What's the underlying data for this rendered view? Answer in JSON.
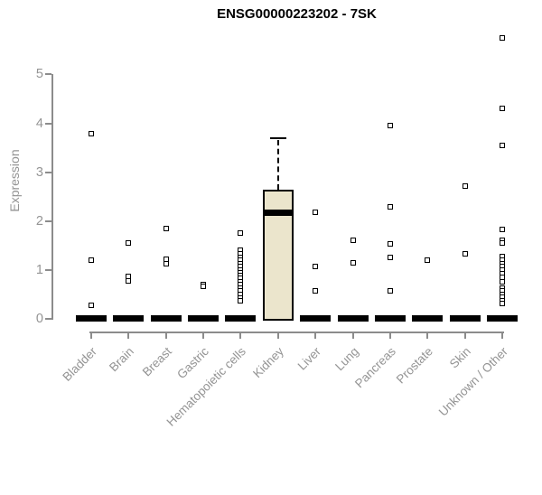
{
  "title": "ENSG00000223202 - 7SK",
  "chart_data": {
    "type": "boxplot",
    "title": "ENSG00000223202 - 7SK",
    "ylabel": "Expression",
    "xlabel": "",
    "yticks": [
      0,
      1,
      2,
      3,
      4,
      5
    ],
    "ylim": [
      0,
      5.9
    ],
    "grid": false,
    "legend": "none",
    "axis_color": "#8c8c8c",
    "label_color": "#949494",
    "box_fill": "#ebe5cc",
    "box_stroke": "#000000",
    "categories": [
      "Bladder",
      "Brain",
      "Breast",
      "Gastric",
      "Hematopoietic cells",
      "Kidney",
      "Liver",
      "Lung",
      "Pancreas",
      "Prostate",
      "Skin",
      "Unknown / Other"
    ],
    "boxes": [
      {
        "category": "Bladder",
        "q1": 0,
        "median": 0,
        "q3": 0,
        "whisker_low": 0,
        "whisker_high": 0,
        "outliers": [
          3.78,
          1.2,
          0.28
        ]
      },
      {
        "category": "Brain",
        "q1": 0,
        "median": 0,
        "q3": 0,
        "whisker_low": 0,
        "whisker_high": 0,
        "outliers": [
          1.54,
          0.86,
          0.78
        ]
      },
      {
        "category": "Breast",
        "q1": 0,
        "median": 0,
        "q3": 0,
        "whisker_low": 0,
        "whisker_high": 0,
        "outliers": [
          1.84,
          1.21,
          1.13
        ]
      },
      {
        "category": "Gastric",
        "q1": 0,
        "median": 0,
        "q3": 0,
        "whisker_low": 0,
        "whisker_high": 0,
        "outliers": [
          0.7,
          0.66
        ]
      },
      {
        "category": "Hematopoietic cells",
        "q1": 0,
        "median": 0,
        "q3": 0,
        "whisker_low": 0,
        "whisker_high": 0,
        "outliers": [
          1.75,
          1.4,
          1.33,
          1.26,
          1.19,
          1.13,
          1.06,
          1.0,
          0.94,
          0.88,
          0.82,
          0.76,
          0.7,
          0.63,
          0.56,
          0.49,
          0.42,
          0.36
        ]
      },
      {
        "category": "Kidney",
        "q1": 0,
        "median": 2.16,
        "q3": 2.64,
        "whisker_low": 0,
        "whisker_high": 3.7,
        "outliers": []
      },
      {
        "category": "Liver",
        "q1": 0,
        "median": 0,
        "q3": 0,
        "whisker_low": 0,
        "whisker_high": 0,
        "outliers": [
          2.18,
          1.07,
          0.57
        ]
      },
      {
        "category": "Lung",
        "q1": 0,
        "median": 0,
        "q3": 0,
        "whisker_low": 0,
        "whisker_high": 0,
        "outliers": [
          1.6,
          1.15
        ]
      },
      {
        "category": "Pancreas",
        "q1": 0,
        "median": 0,
        "q3": 0,
        "whisker_low": 0,
        "whisker_high": 0,
        "outliers": [
          3.96,
          2.29,
          1.53,
          1.25,
          0.57
        ]
      },
      {
        "category": "Prostate",
        "q1": 0,
        "median": 0,
        "q3": 0,
        "whisker_low": 0,
        "whisker_high": 0,
        "outliers": [
          1.2
        ]
      },
      {
        "category": "Skin",
        "q1": 0,
        "median": 0,
        "q3": 0,
        "whisker_low": 0,
        "whisker_high": 0,
        "outliers": [
          2.72,
          1.32
        ]
      },
      {
        "category": "Unknown / Other",
        "q1": 0,
        "median": 0,
        "q3": 0,
        "whisker_low": 0,
        "whisker_high": 0,
        "outliers": [
          5.75,
          4.31,
          3.54,
          1.82,
          1.6,
          1.55,
          1.27,
          1.2,
          1.13,
          1.06,
          1.0,
          0.92,
          0.84,
          0.76,
          0.63,
          0.56,
          0.5,
          0.44,
          0.37,
          0.31
        ]
      }
    ]
  }
}
